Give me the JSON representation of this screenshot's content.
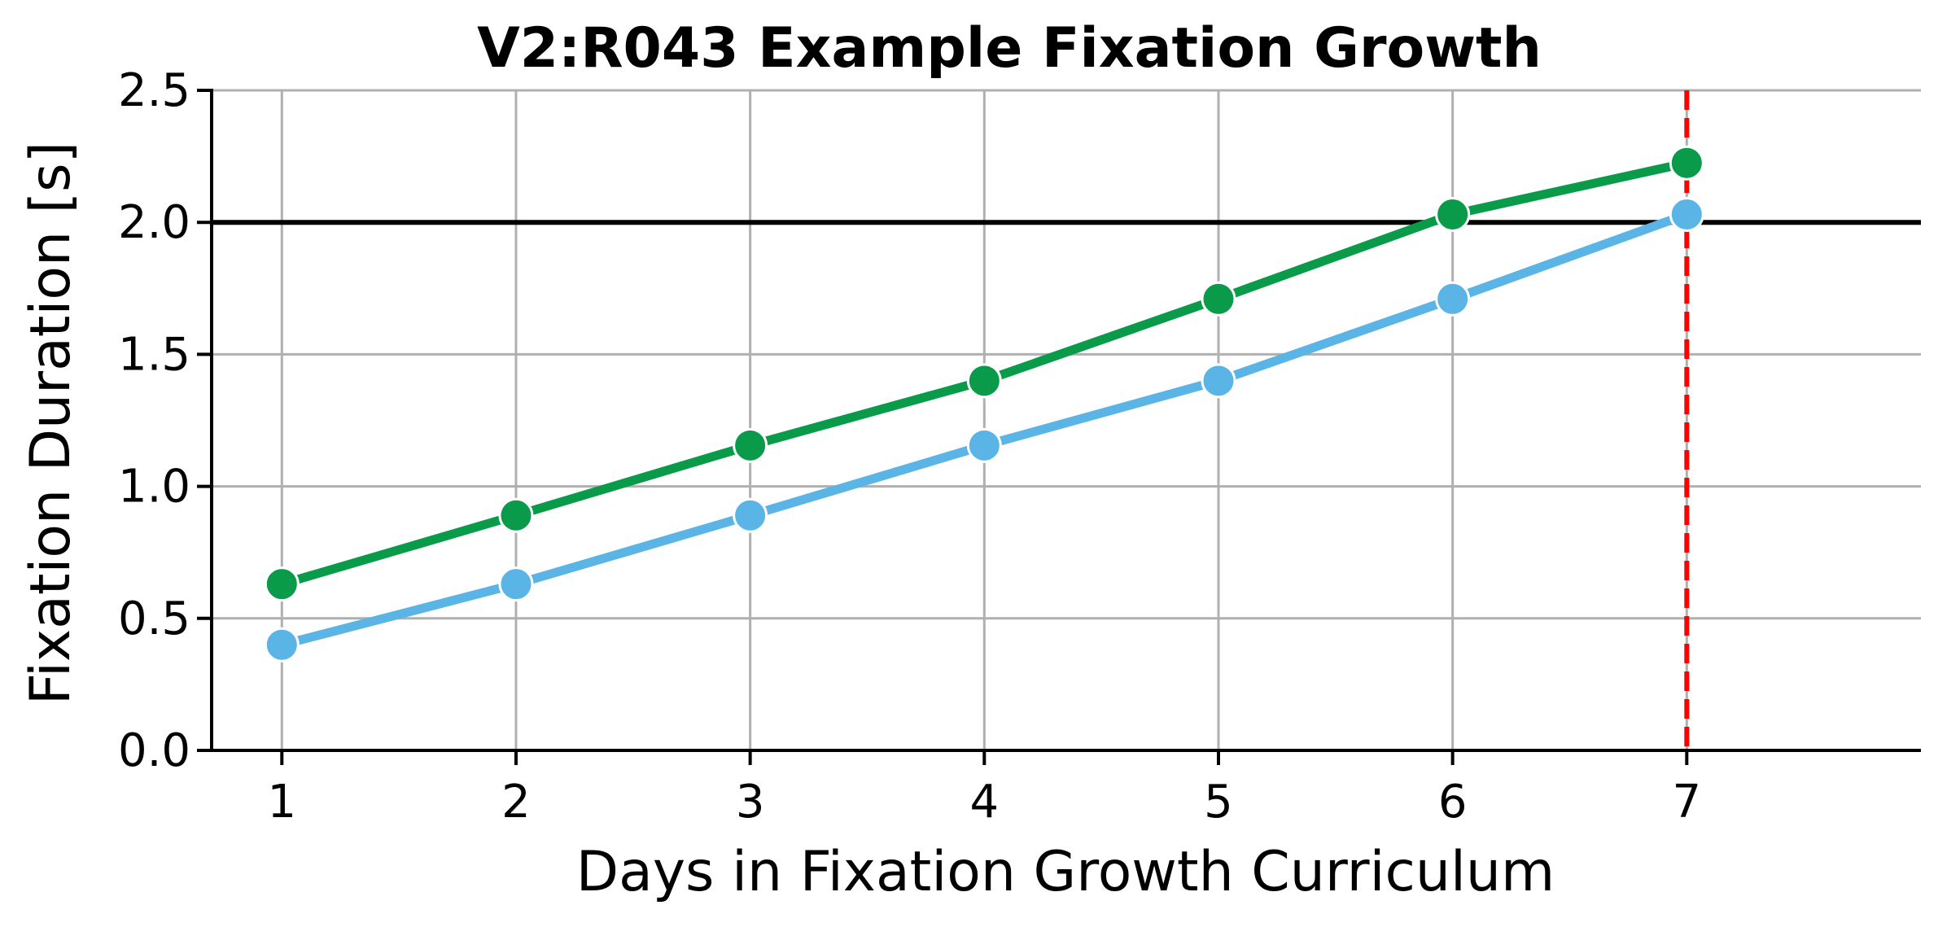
{
  "chart_data": {
    "type": "line",
    "title": "V2:R043 Example Fixation Growth",
    "xlabel": "Days in Fixation Growth Curriculum",
    "ylabel": "Fixation Duration [s]",
    "x": [
      1,
      2,
      3,
      4,
      5,
      6,
      7
    ],
    "xlim": [
      0.7,
      8.0
    ],
    "ylim": [
      0.0,
      2.5
    ],
    "xticks": [
      "1",
      "2",
      "3",
      "4",
      "5",
      "6",
      "7"
    ],
    "yticks": [
      "0.0",
      "0.5",
      "1.0",
      "1.5",
      "2.0",
      "2.5"
    ],
    "grid": true,
    "legend": "none",
    "series": [
      {
        "color": "#0a9b4a",
        "values": [
          0.63,
          0.89,
          1.155,
          1.4,
          1.71,
          2.03,
          2.225
        ]
      },
      {
        "color": "#5ab4e5",
        "values": [
          0.4,
          0.63,
          0.89,
          1.155,
          1.4,
          1.71,
          2.03
        ]
      }
    ],
    "reference_lines": [
      {
        "orientation": "horizontal",
        "value": 2.0,
        "color": "#000000",
        "style": "solid"
      },
      {
        "orientation": "vertical",
        "value": 7,
        "color": "#ff0000",
        "style": "dashed"
      }
    ]
  }
}
